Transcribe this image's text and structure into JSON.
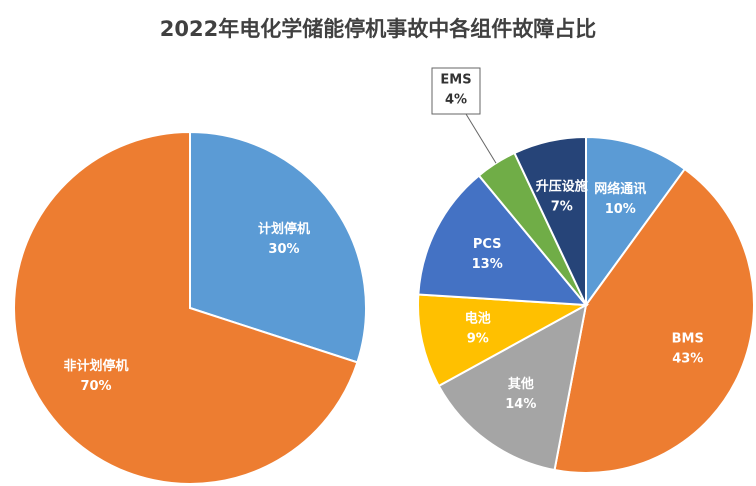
{
  "title": "2022年电化学储能停机事故中各组件故障占比",
  "chart_data": [
    {
      "type": "pie",
      "categories": [
        "计划停机",
        "非计划停机"
      ],
      "values": [
        30,
        70
      ],
      "value_labels": [
        "30%",
        "70%"
      ],
      "colors": [
        "#5b9bd5",
        "#ed7d31"
      ]
    },
    {
      "type": "pie",
      "categories": [
        "网络通讯",
        "BMS",
        "其他",
        "电池",
        "PCS",
        "EMS",
        "升压设施"
      ],
      "values": [
        10,
        43,
        14,
        9,
        13,
        4,
        7
      ],
      "value_labels": [
        "10%",
        "43%",
        "14%",
        "9%",
        "13%",
        "4%",
        "7%"
      ],
      "colors": [
        "#5b9bd5",
        "#ed7d31",
        "#a5a5a5",
        "#ffc000",
        "#4472c4",
        "#70ad47",
        "#264478"
      ]
    }
  ]
}
